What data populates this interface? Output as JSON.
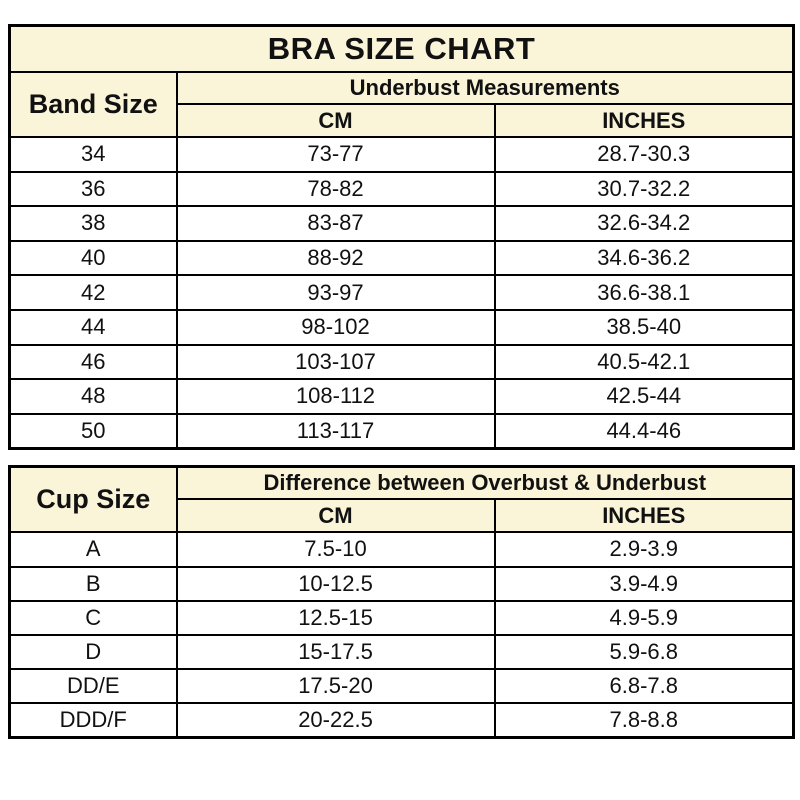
{
  "colors": {
    "header_bg": "#faf4d8",
    "border": "#000000",
    "text": "#111111",
    "row_bg": "#ffffff"
  },
  "chart_data": [
    {
      "type": "table",
      "title": "BRA SIZE CHART",
      "row_header": "Band Size",
      "group_header": "Underbust Measurements",
      "sub_headers": [
        "CM",
        "INCHES"
      ],
      "rows": [
        [
          "34",
          "73-77",
          "28.7-30.3"
        ],
        [
          "36",
          "78-82",
          "30.7-32.2"
        ],
        [
          "38",
          "83-87",
          "32.6-34.2"
        ],
        [
          "40",
          "88-92",
          "34.6-36.2"
        ],
        [
          "42",
          "93-97",
          "36.6-38.1"
        ],
        [
          "44",
          "98-102",
          "38.5-40"
        ],
        [
          "46",
          "103-107",
          "40.5-42.1"
        ],
        [
          "48",
          "108-112",
          "42.5-44"
        ],
        [
          "50",
          "113-117",
          "44.4-46"
        ]
      ]
    },
    {
      "type": "table",
      "title": "",
      "row_header": "Cup Size",
      "group_header": "Difference between Overbust & Underbust",
      "sub_headers": [
        "CM",
        "INCHES"
      ],
      "rows": [
        [
          "A",
          "7.5-10",
          "2.9-3.9"
        ],
        [
          "B",
          "10-12.5",
          "3.9-4.9"
        ],
        [
          "C",
          "12.5-15",
          "4.9-5.9"
        ],
        [
          "D",
          "15-17.5",
          "5.9-6.8"
        ],
        [
          "DD/E",
          "17.5-20",
          "6.8-7.8"
        ],
        [
          "DDD/F",
          "20-22.5",
          "7.8-8.8"
        ]
      ]
    }
  ]
}
